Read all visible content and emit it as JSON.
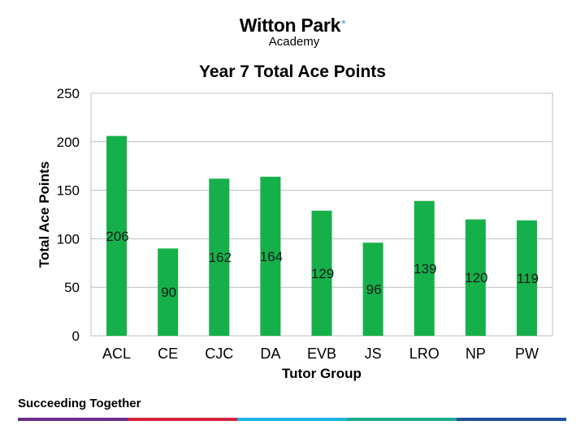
{
  "header": {
    "logo_name": "Witton Park",
    "logo_star": "*",
    "logo_sub": "Academy"
  },
  "footer": {
    "tagline": "Succeeding Together",
    "stripe_colors": [
      "#6a2c8e",
      "#d6203b",
      "#1bb3e6",
      "#1aa98d",
      "#1f4e9a"
    ]
  },
  "chart_data": {
    "type": "bar",
    "title": "Year 7 Total Ace Points",
    "xlabel": "Tutor Group",
    "ylabel": "Total Ace Points",
    "categories": [
      "ACL",
      "CE",
      "CJC",
      "DA",
      "EVB",
      "JS",
      "LRO",
      "NP",
      "PW"
    ],
    "values": [
      206,
      90,
      162,
      164,
      129,
      96,
      139,
      120,
      119
    ],
    "ylim": [
      0,
      250
    ],
    "yticks": [
      0,
      50,
      100,
      150,
      200,
      250
    ],
    "grid": true,
    "legend": false,
    "bar_color": "#16b04a"
  }
}
